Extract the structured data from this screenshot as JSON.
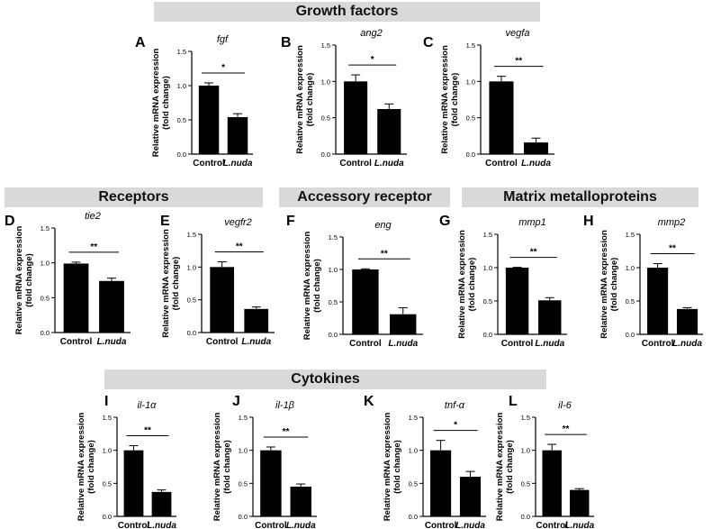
{
  "sections": {
    "growth": "Growth factors",
    "receptors": "Receptors",
    "accessory": "Accessory receptor",
    "matrix": "Matrix metalloproteins",
    "cytokines": "Cytokines"
  },
  "chart_data": [
    {
      "panel": "A",
      "type": "bar",
      "title": "fgf",
      "categories": [
        "Control",
        "L.nuda"
      ],
      "values": [
        1.0,
        0.54
      ],
      "errors": [
        0.04,
        0.05
      ],
      "significance": "*",
      "ylabel": "Relative mRNA expression (fold change)",
      "ylim": [
        0,
        1.5
      ],
      "yticks": [
        "0.0",
        "0.5",
        "1.0",
        "1.5"
      ]
    },
    {
      "panel": "B",
      "type": "bar",
      "title": "ang2",
      "categories": [
        "Control",
        "L.nuda"
      ],
      "values": [
        1.0,
        0.62
      ],
      "errors": [
        0.09,
        0.07
      ],
      "significance": "*",
      "ylabel": "Relative mRNA expression (fold change)",
      "ylim": [
        0,
        1.5
      ],
      "yticks": [
        "0.0",
        "0.5",
        "1.0",
        "1.5"
      ]
    },
    {
      "panel": "C",
      "type": "bar",
      "title": "vegfa",
      "categories": [
        "Control",
        "L.nuda"
      ],
      "values": [
        1.0,
        0.16
      ],
      "errors": [
        0.07,
        0.06
      ],
      "significance": "**",
      "ylabel": "Relative mRNA expression (fold change)",
      "ylim": [
        0,
        1.5
      ],
      "yticks": [
        "0.0",
        "0.5",
        "1.0",
        "1.5"
      ]
    },
    {
      "panel": "D",
      "type": "bar",
      "title": "tie2",
      "categories": [
        "Control",
        "L.nuda"
      ],
      "values": [
        0.99,
        0.74
      ],
      "errors": [
        0.02,
        0.04
      ],
      "significance": "**",
      "ylabel": "Relative mRNA expression (fold change)",
      "ylim": [
        0,
        1.5
      ],
      "yticks": [
        "0.0",
        "0.5",
        "1.0",
        "1.5"
      ]
    },
    {
      "panel": "E",
      "type": "bar",
      "title": "vegfr2",
      "categories": [
        "Control",
        "L.nuda"
      ],
      "values": [
        1.0,
        0.36
      ],
      "errors": [
        0.08,
        0.03
      ],
      "significance": "**",
      "ylabel": "Relative mRNA expression (fold change)",
      "ylim": [
        0,
        1.5
      ],
      "yticks": [
        "0.0",
        "0.5",
        "1.0",
        "1.5"
      ]
    },
    {
      "panel": "F",
      "type": "bar",
      "title": "eng",
      "categories": [
        "Control",
        "L.nuda"
      ],
      "values": [
        1.0,
        0.31
      ],
      "errors": [
        0.01,
        0.1
      ],
      "significance": "**",
      "ylabel": "Relative mRNA expression (fold change)",
      "ylim": [
        0,
        1.5
      ],
      "yticks": [
        "0.0",
        "0.5",
        "1.0",
        "1.5"
      ]
    },
    {
      "panel": "G",
      "type": "bar",
      "title": "mmp1",
      "categories": [
        "Control",
        "L.nuda"
      ],
      "values": [
        1.0,
        0.51
      ],
      "errors": [
        0.005,
        0.04
      ],
      "significance": "**",
      "ylabel": "Relative mRNA expression (fold change)",
      "ylim": [
        0,
        1.5
      ],
      "yticks": [
        "0.0",
        "0.5",
        "1.0",
        "1.5"
      ]
    },
    {
      "panel": "H",
      "type": "bar",
      "title": "mmp2",
      "categories": [
        "Control",
        "L.nuda"
      ],
      "values": [
        1.0,
        0.38
      ],
      "errors": [
        0.06,
        0.02
      ],
      "significance": "**",
      "ylabel": "Relative mRNA expression (fold change)",
      "ylim": [
        0,
        1.5
      ],
      "yticks": [
        "0.0",
        "0.5",
        "1.0",
        "1.5"
      ]
    },
    {
      "panel": "I",
      "type": "bar",
      "title": "il-1α",
      "categories": [
        "Control",
        "L.nuda"
      ],
      "values": [
        1.0,
        0.37
      ],
      "errors": [
        0.07,
        0.03
      ],
      "significance": "**",
      "ylabel": "Relative mRNA expression (fold change)",
      "ylim": [
        0,
        1.5
      ],
      "yticks": [
        "0.0",
        "0.5",
        "1.0",
        "1.5"
      ]
    },
    {
      "panel": "J",
      "type": "bar",
      "title": "il-1β",
      "categories": [
        "Control",
        "L.nuda"
      ],
      "values": [
        1.0,
        0.45
      ],
      "errors": [
        0.05,
        0.04
      ],
      "significance": "**",
      "ylabel": "Relative mRNA expression (fold change)",
      "ylim": [
        0,
        1.5
      ],
      "yticks": [
        "0.0",
        "0.5",
        "1.0",
        "1.5"
      ]
    },
    {
      "panel": "K",
      "type": "bar",
      "title": "tnf-α",
      "categories": [
        "Control",
        "L.nuda"
      ],
      "values": [
        1.0,
        0.6
      ],
      "errors": [
        0.15,
        0.08
      ],
      "significance": "*",
      "ylabel": "Relative mRNA expression (fold change)",
      "ylim": [
        0,
        1.5
      ],
      "yticks": [
        "0.0",
        "0.5",
        "1.0",
        "1.5"
      ]
    },
    {
      "panel": "L",
      "type": "bar",
      "title": "il-6",
      "categories": [
        "Control",
        "L.nuda"
      ],
      "values": [
        1.0,
        0.4
      ],
      "errors": [
        0.09,
        0.02
      ],
      "significance": "**",
      "ylabel": "Relative mRNA expression (fold change)",
      "ylim": [
        0,
        1.5
      ],
      "yticks": [
        "0.0",
        "0.5",
        "1.0",
        "1.5"
      ]
    }
  ]
}
